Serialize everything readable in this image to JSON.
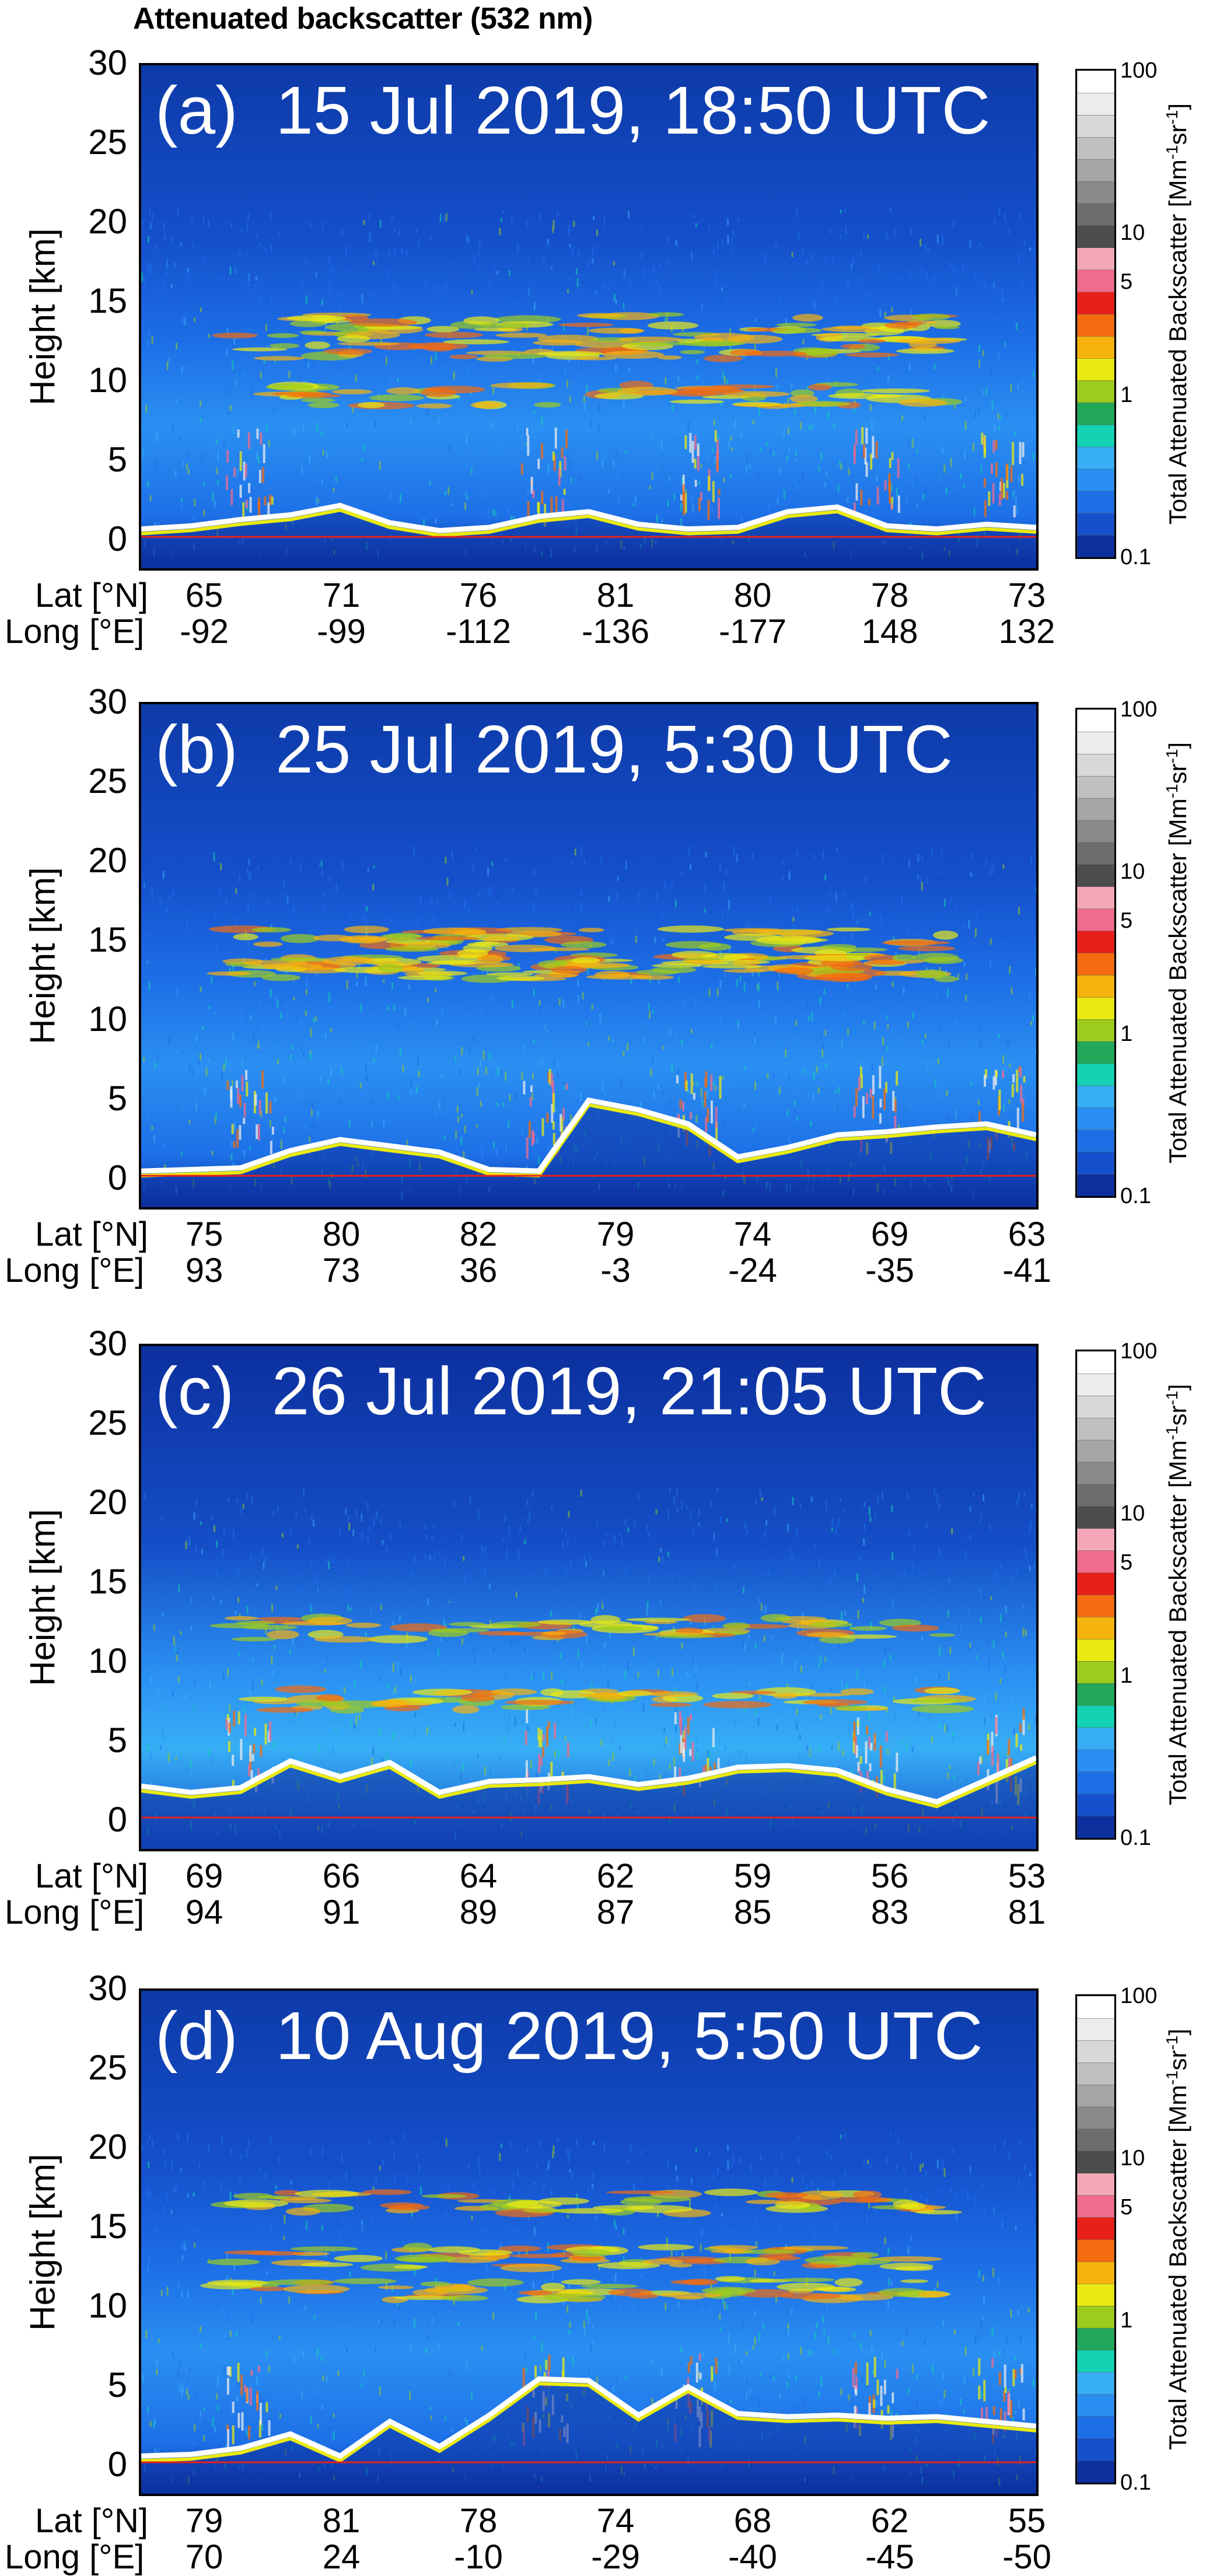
{
  "figure_title": "Attenuated backscatter (532 nm)",
  "y_axis_label": "Height [km]",
  "y_ticks": [
    "30",
    "25",
    "20",
    "15",
    "10",
    "5",
    "0"
  ],
  "lat_label": "Lat [°N]",
  "long_label": "Long [°E]",
  "colorbar": {
    "label_prefix": "Total Attenuated Backscatter [Mm",
    "label_sup1": "-1",
    "label_mid": "sr",
    "label_sup2": "-1",
    "label_suffix": "]",
    "tick_labels": [
      "100",
      "10",
      "5",
      "1",
      "0.1"
    ],
    "ticks": [
      100,
      10,
      5,
      1,
      0.1
    ],
    "colors": [
      "#0c2f9e",
      "#1550cc",
      "#1d6fe6",
      "#2a8ff2",
      "#37aef5",
      "#14d2b4",
      "#22a85a",
      "#9ccc1e",
      "#eaea12",
      "#f6b30e",
      "#f46b10",
      "#e8201a",
      "#f06b8c",
      "#f2a8b8",
      "#4d4d4d",
      "#6d6d6d",
      "#8a8a8a",
      "#a6a6a6",
      "#c0c0c0",
      "#d8d8d8",
      "#ececec",
      "#ffffff"
    ]
  },
  "chart_data": [
    {
      "type": "heatmap",
      "panel_label": "(a)  15 Jul 2019, 18:50 UTC",
      "ylabel": "Height [km]",
      "ylim": [
        -2,
        30
      ],
      "lat": [
        "65",
        "71",
        "76",
        "81",
        "80",
        "78",
        "73"
      ],
      "long": [
        "-92",
        "-99",
        "-112",
        "-136",
        "-177",
        "148",
        "132"
      ],
      "surface_km": [
        0.5,
        0.7,
        1.1,
        1.4,
        2.0,
        0.9,
        0.4,
        0.6,
        1.3,
        1.6,
        0.8,
        0.5,
        0.6,
        1.6,
        1.9,
        0.7,
        0.5,
        0.8,
        0.6
      ],
      "cloud_layers_km": [
        13.5,
        12.0,
        9.0
      ]
    },
    {
      "type": "heatmap",
      "panel_label": "(b)  25 Jul 2019, 5:30 UTC",
      "ylabel": "Height [km]",
      "ylim": [
        -2,
        30
      ],
      "lat": [
        "75",
        "80",
        "82",
        "79",
        "74",
        "69",
        "63"
      ],
      "long": [
        "93",
        "73",
        "36",
        "-3",
        "-24",
        "-35",
        "-41"
      ],
      "surface_km": [
        0.3,
        0.4,
        0.5,
        1.6,
        2.3,
        1.9,
        1.5,
        0.4,
        0.3,
        4.8,
        4.2,
        3.3,
        1.2,
        1.8,
        2.6,
        2.8,
        3.1,
        3.3,
        2.6
      ],
      "cloud_layers_km": [
        13.5,
        13.2,
        15.0
      ]
    },
    {
      "type": "heatmap",
      "panel_label": "(c)  26 Jul 2019, 21:05 UTC",
      "ylabel": "Height [km]",
      "ylim": [
        -2,
        30
      ],
      "lat": [
        "69",
        "66",
        "64",
        "62",
        "59",
        "56",
        "53"
      ],
      "long": [
        "94",
        "91",
        "89",
        "87",
        "85",
        "83",
        "81"
      ],
      "surface_km": [
        2.0,
        1.6,
        1.9,
        3.6,
        2.6,
        3.5,
        1.6,
        2.3,
        2.4,
        2.6,
        2.1,
        2.5,
        3.2,
        3.3,
        3.0,
        1.8,
        1.0,
        2.4,
        3.8
      ],
      "cloud_layers_km": [
        12.0,
        7.5
      ]
    },
    {
      "type": "heatmap",
      "panel_label": "(d)  10 Aug 2019, 5:50 UTC",
      "ylabel": "Height [km]",
      "ylim": [
        -2,
        30
      ],
      "lat": [
        "79",
        "81",
        "78",
        "74",
        "68",
        "62",
        "55"
      ],
      "long": [
        "70",
        "24",
        "-10",
        "-29",
        "-40",
        "-45",
        "-50"
      ],
      "surface_km": [
        0.4,
        0.5,
        0.9,
        1.8,
        0.4,
        2.6,
        1.0,
        3.0,
        5.3,
        5.2,
        3.0,
        4.8,
        3.1,
        2.9,
        3.0,
        2.8,
        2.9,
        2.6,
        2.3
      ],
      "cloud_layers_km": [
        16.5,
        13.0,
        11.0
      ]
    }
  ]
}
